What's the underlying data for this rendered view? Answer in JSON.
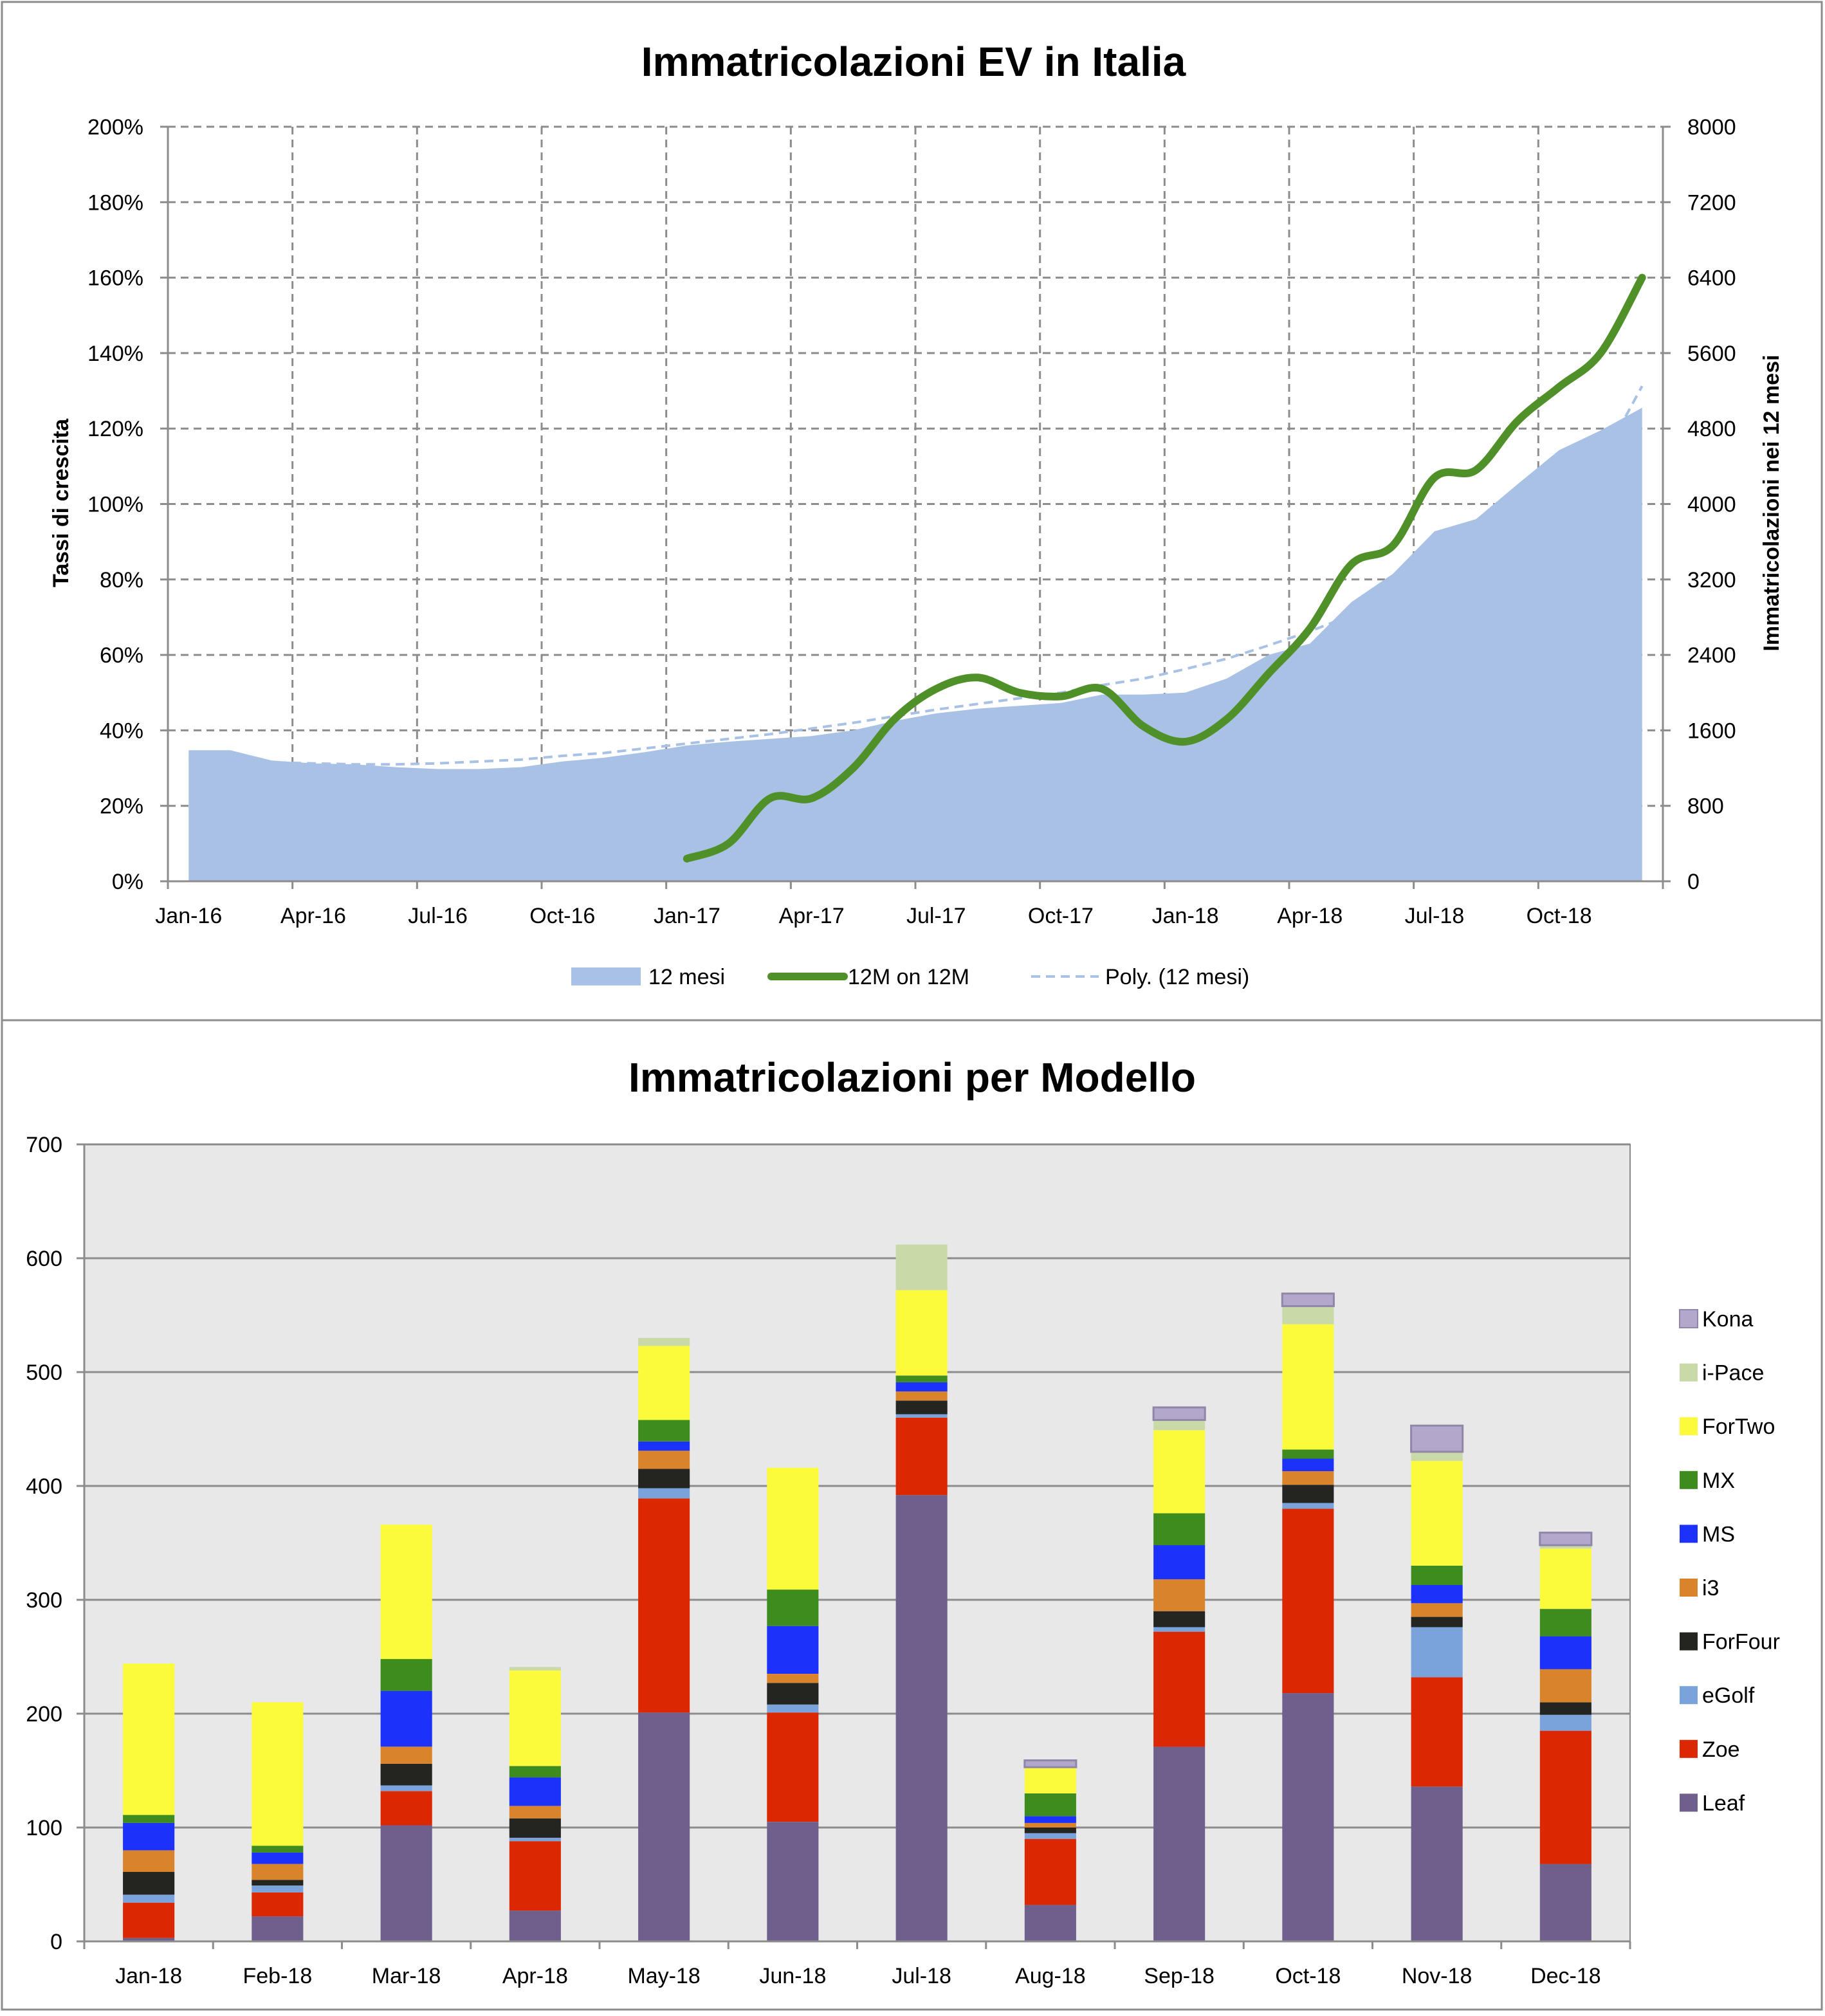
{
  "charts": [
    {
      "chart_data": {
        "type": "area",
        "title": "Immatricolazioni EV in Italia",
        "xlabel": "",
        "ylabel_left": "Tassi di crescita",
        "ylabel_right": "Immatricolazioni nei 12 mesi",
        "ylim_left": [
          0,
          200
        ],
        "ylim_right": [
          0,
          8000
        ],
        "y_ticks_left": [
          "0%",
          "20%",
          "40%",
          "60%",
          "80%",
          "100%",
          "120%",
          "140%",
          "160%",
          "180%",
          "200%"
        ],
        "y_ticks_right": [
          "0",
          "800",
          "1600",
          "2400",
          "3200",
          "4000",
          "4800",
          "5600",
          "6400",
          "7200",
          "8000"
        ],
        "x_tick_labels": [
          "Jan-16",
          "Apr-16",
          "Jul-16",
          "Oct-16",
          "Jan-17",
          "Apr-17",
          "Jul-17",
          "Oct-17",
          "Jan-18",
          "Apr-18",
          "Jul-18",
          "Oct-18"
        ],
        "x_months": [
          "Jan-16",
          "Feb-16",
          "Mar-16",
          "Apr-16",
          "May-16",
          "Jun-16",
          "Jul-16",
          "Aug-16",
          "Sep-16",
          "Oct-16",
          "Nov-16",
          "Dec-16",
          "Jan-17",
          "Feb-17",
          "Mar-17",
          "Apr-17",
          "May-17",
          "Jun-17",
          "Jul-17",
          "Aug-17",
          "Sep-17",
          "Oct-17",
          "Nov-17",
          "Dec-17",
          "Jan-18",
          "Feb-18",
          "Mar-18",
          "Apr-18",
          "May-18",
          "Jun-18",
          "Jul-18",
          "Aug-18",
          "Sep-18",
          "Oct-18",
          "Nov-18",
          "Dec-18"
        ],
        "series": [
          {
            "name": "12 mesi",
            "kind": "area",
            "axis": "right",
            "color": "#a8c1e5",
            "values": [
              1390,
              1390,
              1280,
              1250,
              1240,
              1210,
              1190,
              1190,
              1210,
              1270,
              1310,
              1370,
              1440,
              1480,
              1510,
              1540,
              1600,
              1700,
              1780,
              1830,
              1860,
              1890,
              1980,
              1980,
              2000,
              2150,
              2400,
              2520,
              2960,
              3260,
              3710,
              3840,
              4210,
              4570,
              4780,
              5020
            ]
          },
          {
            "name": "12M on 12M",
            "kind": "line",
            "axis": "left",
            "color": "#4f9128",
            "start_index": 12,
            "values": [
              6,
              10,
              22,
              22,
              30,
              43,
              51,
              54,
              50,
              49,
              51,
              41,
              37,
              43,
              55,
              67,
              84,
              89,
              107,
              109,
              122,
              131,
              140,
              160
            ]
          },
          {
            "name": "Poly. (12 mesi)",
            "kind": "dashed",
            "axis": "right",
            "color": "#a8c1e5",
            "values": [
              1300,
              1280,
              1260,
              1250,
              1240,
              1240,
              1250,
              1270,
              1290,
              1330,
              1360,
              1410,
              1460,
              1510,
              1560,
              1620,
              1680,
              1750,
              1820,
              1880,
              1940,
              2000,
              2080,
              2150,
              2250,
              2360,
              2500,
              2650,
              2820,
              3020,
              3240,
              3480,
              3750,
              4080,
              4440,
              5250
            ]
          }
        ]
      }
    },
    {
      "chart_data": {
        "type": "bar",
        "stacked": true,
        "title": "Immatricolazioni per Modello",
        "xlabel": "",
        "ylabel": "",
        "ylim": [
          0,
          700
        ],
        "y_ticks": [
          "0",
          "100",
          "200",
          "300",
          "400",
          "500",
          "600",
          "700"
        ],
        "categories": [
          "Jan-18",
          "Feb-18",
          "Mar-18",
          "Apr-18",
          "May-18",
          "Jun-18",
          "Jul-18",
          "Aug-18",
          "Sep-18",
          "Oct-18",
          "Nov-18",
          "Dec-18"
        ],
        "series": [
          {
            "name": "Leaf",
            "color": "#6f5f8d",
            "values": [
              3,
              22,
              102,
              27,
              201,
              105,
              392,
              32,
              171,
              218,
              136,
              68
            ]
          },
          {
            "name": "Zoe",
            "color": "#dc2800",
            "values": [
              31,
              21,
              30,
              61,
              188,
              96,
              68,
              58,
              101,
              162,
              96,
              117
            ]
          },
          {
            "name": "eGolf",
            "color": "#7aa3db",
            "values": [
              7,
              6,
              5,
              3,
              9,
              7,
              3,
              5,
              4,
              5,
              44,
              14
            ]
          },
          {
            "name": "ForFour",
            "color": "#242421",
            "values": [
              20,
              5,
              19,
              17,
              17,
              19,
              12,
              5,
              14,
              16,
              9,
              11
            ]
          },
          {
            "name": "i3",
            "color": "#d9842a",
            "values": [
              19,
              14,
              15,
              11,
              16,
              8,
              8,
              4,
              28,
              12,
              12,
              29
            ]
          },
          {
            "name": "MS",
            "color": "#1c32fb",
            "values": [
              24,
              10,
              49,
              25,
              8,
              42,
              8,
              6,
              30,
              11,
              16,
              29
            ]
          },
          {
            "name": "MX",
            "color": "#3f8c1e",
            "values": [
              7,
              6,
              28,
              10,
              19,
              32,
              6,
              20,
              28,
              8,
              17,
              24
            ]
          },
          {
            "name": "ForTwo",
            "color": "#fbfb3c",
            "values": [
              133,
              126,
              118,
              84,
              65,
              107,
              75,
              23,
              73,
              110,
              92,
              53
            ]
          },
          {
            "name": "i-Pace",
            "color": "#cad9a8",
            "values": [
              0,
              0,
              0,
              3,
              7,
              0,
              40,
              0,
              9,
              16,
              8,
              3
            ]
          },
          {
            "name": "Kona",
            "color": "#b3a7cc",
            "values": [
              0,
              0,
              0,
              0,
              0,
              0,
              0,
              6,
              11,
              11,
              23,
              11
            ]
          }
        ]
      }
    }
  ]
}
